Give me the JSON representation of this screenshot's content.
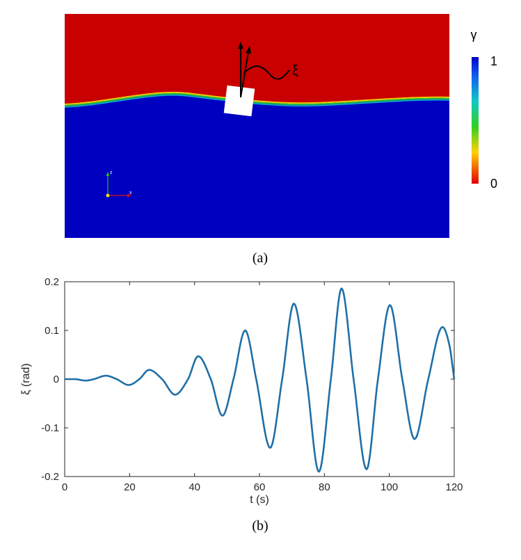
{
  "panel_a": {
    "caption": "(a)",
    "colorbar": {
      "title": "γ",
      "max_label": "1",
      "min_label": "0"
    },
    "angle_label": "ξ",
    "axis_icon_labels": {
      "x": "x",
      "y": "z"
    },
    "colors": {
      "air": "#c80000",
      "water": "#0000c0",
      "body": "#ffffff"
    }
  },
  "panel_b": {
    "caption": "(b)"
  },
  "chart_data": {
    "type": "line",
    "title": "",
    "xlabel": "t (s)",
    "ylabel": "ξ (rad)",
    "xlim": [
      0,
      120
    ],
    "ylim": [
      -0.2,
      0.2
    ],
    "xticks": [
      0,
      20,
      40,
      60,
      80,
      100,
      120
    ],
    "xtick_labels": [
      "0",
      "20",
      "40",
      "60",
      "80",
      "100",
      "120"
    ],
    "yticks": [
      -0.2,
      -0.1,
      0,
      0.1,
      0.2
    ],
    "ytick_labels": [
      "-0.2",
      "-0.1",
      "0",
      "0.1",
      "0.2"
    ],
    "series": [
      {
        "name": "ξ",
        "color": "#1f6fa8",
        "x": [
          0,
          3,
          6.5,
          9,
          12.7,
          16,
          19.7,
          23,
          26,
          30,
          34,
          38,
          41.1,
          45,
          48.6,
          52,
          55.6,
          59,
          63.3,
          67,
          70.6,
          74.5,
          78.3,
          82,
          85.3,
          89,
          93,
          96.5,
          100.2,
          104,
          107.8,
          112,
          116.4,
          118.5,
          120
        ],
        "y": [
          0,
          0,
          -0.003,
          0,
          0.007,
          0,
          -0.012,
          0,
          0.019,
          0,
          -0.032,
          0,
          0.047,
          0,
          -0.075,
          0,
          0.1,
          0,
          -0.141,
          0,
          0.155,
          0,
          -0.19,
          0,
          0.186,
          0,
          -0.185,
          0,
          0.152,
          0,
          -0.123,
          0,
          0.107,
          0.07,
          0
        ]
      }
    ]
  }
}
